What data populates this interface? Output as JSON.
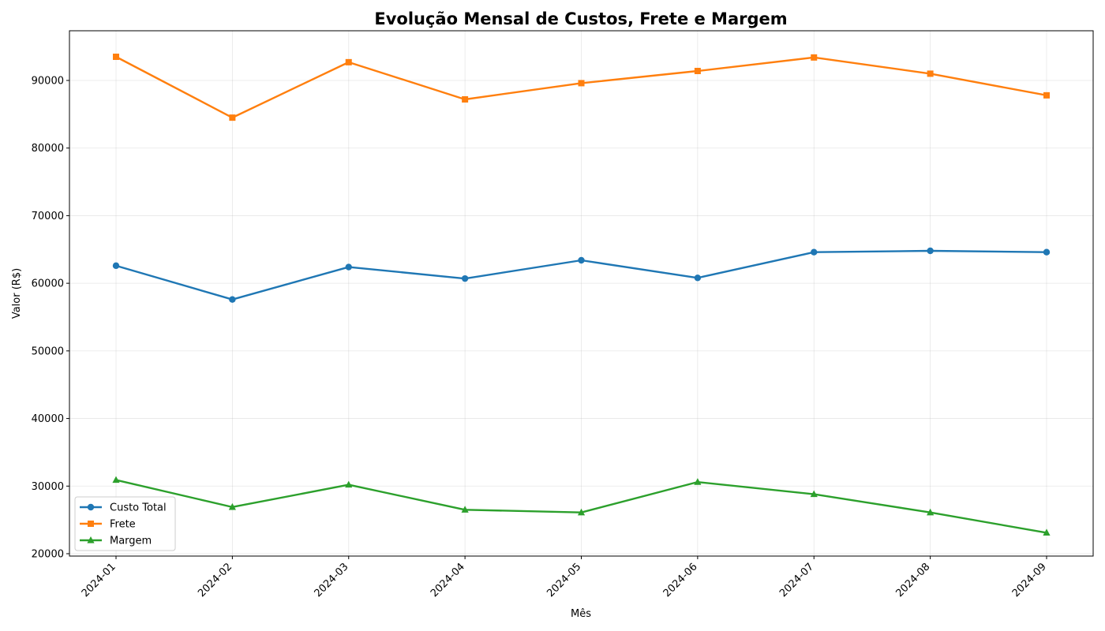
{
  "chart_data": {
    "type": "line",
    "title": "Evolução Mensal de Custos, Frete e Margem",
    "xlabel": "Mês",
    "ylabel": "Valor (R$)",
    "categories": [
      "2024-01",
      "2024-02",
      "2024-03",
      "2024-04",
      "2024-05",
      "2024-06",
      "2024-07",
      "2024-08",
      "2024-09"
    ],
    "ylim": [
      19650,
      97350
    ],
    "yticks": [
      20000,
      30000,
      40000,
      50000,
      60000,
      70000,
      80000,
      90000
    ],
    "grid": true,
    "legend_position": "lower-left",
    "series": [
      {
        "name": "Custo Total",
        "color": "#1f77b4",
        "marker": "circle",
        "values": [
          62600,
          57600,
          62400,
          60700,
          63400,
          60800,
          64600,
          64800,
          64600
        ]
      },
      {
        "name": "Frete",
        "color": "#ff7f0e",
        "marker": "square",
        "values": [
          93500,
          84500,
          92700,
          87200,
          89600,
          91400,
          93400,
          91000,
          87800
        ]
      },
      {
        "name": "Margem",
        "color": "#2ca02c",
        "marker": "triangle",
        "values": [
          30900,
          26900,
          30200,
          26500,
          26100,
          30600,
          28800,
          26100,
          23100
        ]
      }
    ]
  }
}
